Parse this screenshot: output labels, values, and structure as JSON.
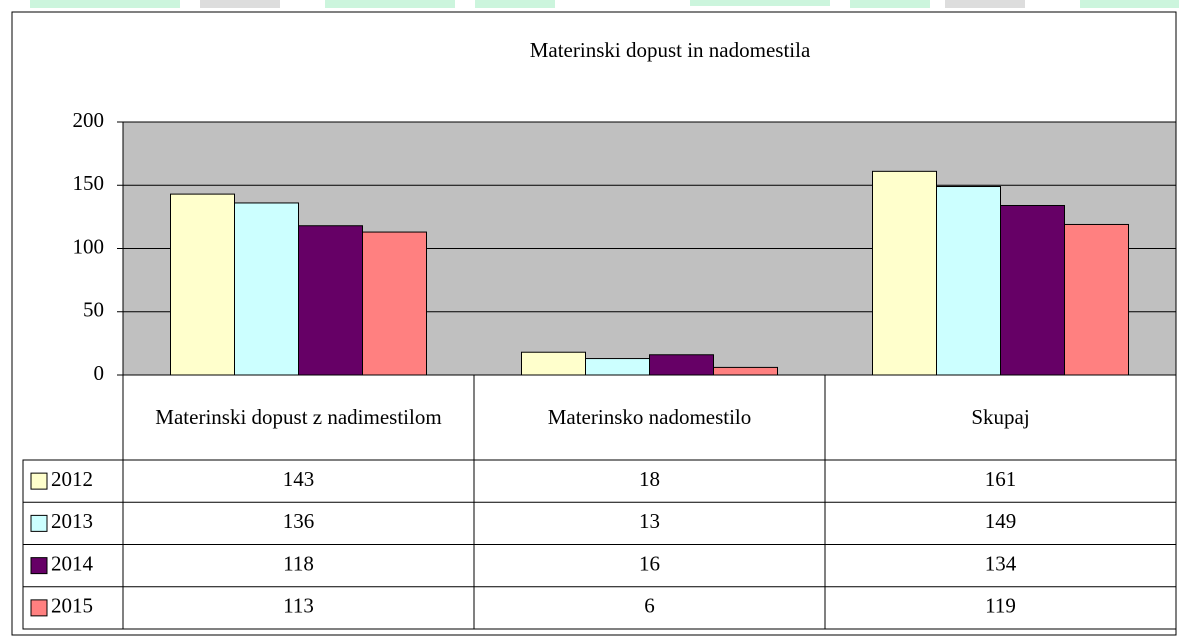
{
  "chart_data": {
    "type": "bar",
    "title": "Materinski dopust in nadomestila",
    "categories": [
      "Materinski dopust z nadimestilom",
      "Materinsko nadomestilo",
      "Skupaj"
    ],
    "series": [
      {
        "name": "2012",
        "color": "#ffffcc",
        "values": [
          143,
          18,
          161
        ]
      },
      {
        "name": "2013",
        "color": "#ccffff",
        "values": [
          136,
          13,
          149
        ]
      },
      {
        "name": "2014",
        "color": "#660066",
        "values": [
          118,
          16,
          134
        ]
      },
      {
        "name": "2015",
        "color": "#ff8080",
        "values": [
          113,
          6,
          119
        ]
      }
    ],
    "ylim": [
      0,
      200
    ],
    "yticks": [
      0,
      50,
      100,
      150,
      200
    ],
    "grid": true,
    "plot_background": "#c0c0c0",
    "data_table": true
  }
}
